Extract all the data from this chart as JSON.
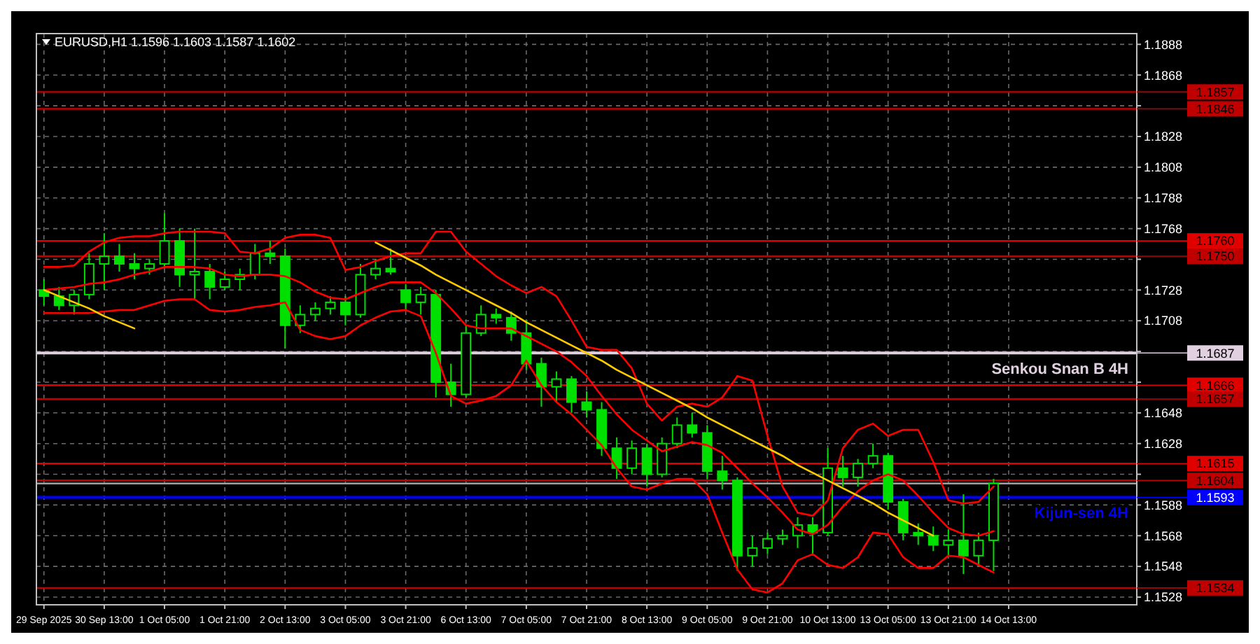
{
  "chart_data": {
    "type": "candlestick",
    "title": "EURUSD,H1  1.1596 1.1603 1.1587 1.1602",
    "color": "#00e000",
    "categories": [
      "29 Sep 2025",
      null,
      null,
      null,
      "30 Sep 13:00",
      null,
      null,
      null,
      "1 Oct 05:00",
      null,
      null,
      null,
      "1 Oct 21:00",
      null,
      null,
      null,
      "2 Oct 13:00",
      null,
      null,
      null,
      "3 Oct 05:00",
      null,
      null,
      null,
      "3 Oct 21:00",
      null,
      null,
      null,
      "6 Oct 13:00",
      null,
      null,
      null,
      "7 Oct 05:00",
      null,
      null,
      null,
      "7 Oct 21:00",
      null,
      null,
      null,
      "8 Oct 13:00",
      null,
      null,
      null,
      "9 Oct 05:00",
      null,
      null,
      null,
      "9 Oct 21:00",
      null,
      null,
      null,
      "10 Oct 13:00",
      null,
      null,
      null,
      "13 Oct 05:00",
      null,
      null,
      null,
      "13 Oct 21:00",
      null,
      null,
      null,
      "14 Oct 13:00",
      null,
      null,
      null,
      null,
      null,
      null,
      null,
      null
    ],
    "ohlc": [
      [
        1.1728,
        1.1735,
        1.1718,
        1.1724
      ],
      [
        1.1724,
        1.173,
        1.1715,
        1.1718
      ],
      [
        1.1718,
        1.1728,
        1.1712,
        1.1725
      ],
      [
        1.1725,
        1.1752,
        1.1722,
        1.1745
      ],
      [
        1.1745,
        1.1765,
        1.1728,
        1.175
      ],
      [
        1.175,
        1.1758,
        1.174,
        1.1745
      ],
      [
        1.1745,
        1.1752,
        1.1735,
        1.1742
      ],
      [
        1.1742,
        1.1748,
        1.1738,
        1.1745
      ],
      [
        1.1745,
        1.1778,
        1.1742,
        1.176
      ],
      [
        1.176,
        1.1768,
        1.173,
        1.1738
      ],
      [
        1.1738,
        1.1768,
        1.1722,
        1.174
      ],
      [
        1.174,
        1.1745,
        1.1722,
        1.173
      ],
      [
        1.173,
        1.174,
        1.1728,
        1.1735
      ],
      [
        1.1735,
        1.1742,
        1.1728,
        1.1738
      ],
      [
        1.1738,
        1.1758,
        1.1735,
        1.1752
      ],
      [
        1.1752,
        1.176,
        1.1745,
        1.175
      ],
      [
        1.175,
        1.1755,
        1.169,
        1.1705
      ],
      [
        1.1705,
        1.1718,
        1.17,
        1.1712
      ],
      [
        1.1712,
        1.172,
        1.1708,
        1.1716
      ],
      [
        1.1716,
        1.1724,
        1.1712,
        1.172
      ],
      [
        1.172,
        1.1724,
        1.1705,
        1.1712
      ],
      [
        1.1712,
        1.1745,
        1.171,
        1.1738
      ],
      [
        1.1738,
        1.1748,
        1.1735,
        1.1742
      ],
      [
        1.1742,
        1.1755,
        1.1738,
        1.174
      ],
      [
        1.1728,
        1.1732,
        1.1715,
        1.172
      ],
      [
        1.172,
        1.173,
        1.1712,
        1.1725
      ],
      [
        1.1725,
        1.1728,
        1.1658,
        1.1668
      ],
      [
        1.1668,
        1.168,
        1.1652,
        1.166
      ],
      [
        1.166,
        1.1705,
        1.1658,
        1.17
      ],
      [
        1.17,
        1.1718,
        1.1698,
        1.1712
      ],
      [
        1.1712,
        1.1716,
        1.1706,
        1.171
      ],
      [
        1.171,
        1.1714,
        1.1695,
        1.17
      ],
      [
        1.17,
        1.1708,
        1.1676,
        1.168
      ],
      [
        1.168,
        1.1684,
        1.1652,
        1.1665
      ],
      [
        1.1665,
        1.1675,
        1.1655,
        1.167
      ],
      [
        1.167,
        1.1672,
        1.1648,
        1.1655
      ],
      [
        1.1655,
        1.1662,
        1.1645,
        1.165
      ],
      [
        1.165,
        1.1655,
        1.162,
        1.1625
      ],
      [
        1.1625,
        1.1632,
        1.1605,
        1.1612
      ],
      [
        1.1612,
        1.163,
        1.1608,
        1.1625
      ],
      [
        1.1625,
        1.1628,
        1.16,
        1.1608
      ],
      [
        1.1608,
        1.1632,
        1.1606,
        1.1628
      ],
      [
        1.1628,
        1.1645,
        1.1625,
        1.164
      ],
      [
        1.164,
        1.1648,
        1.1632,
        1.1635
      ],
      [
        1.1635,
        1.164,
        1.1605,
        1.161
      ],
      [
        1.161,
        1.162,
        1.1598,
        1.1604
      ],
      [
        1.1604,
        1.1606,
        1.1545,
        1.1555
      ],
      [
        1.1555,
        1.1568,
        1.1548,
        1.156
      ],
      [
        1.156,
        1.157,
        1.1556,
        1.1566
      ],
      [
        1.1566,
        1.1572,
        1.1562,
        1.1568
      ],
      [
        1.1568,
        1.158,
        1.156,
        1.1575
      ],
      [
        1.1575,
        1.158,
        1.1555,
        1.157
      ],
      [
        1.157,
        1.1625,
        1.1568,
        1.1612
      ],
      [
        1.1612,
        1.162,
        1.16,
        1.1606
      ],
      [
        1.1606,
        1.1618,
        1.16,
        1.1615
      ],
      [
        1.1615,
        1.1628,
        1.1612,
        1.162
      ],
      [
        1.162,
        1.1622,
        1.1585,
        1.159
      ],
      [
        1.159,
        1.1592,
        1.1565,
        1.157
      ],
      [
        1.157,
        1.1576,
        1.1562,
        1.1568
      ],
      [
        1.1568,
        1.1574,
        1.1558,
        1.1562
      ],
      [
        1.1562,
        1.1572,
        1.1555,
        1.1565
      ],
      [
        1.1565,
        1.1595,
        1.1543,
        1.1555
      ],
      [
        1.1555,
        1.157,
        1.1548,
        1.1565
      ],
      [
        1.1565,
        1.1605,
        1.1545,
        1.1602
      ],
      null,
      null,
      null,
      null,
      null,
      null,
      null,
      null,
      null
    ],
    "series": [
      {
        "type": "line",
        "color": "#ff0000",
        "values": [
          1.1743,
          1.1743,
          1.1744,
          1.1753,
          1.1759,
          1.1762,
          1.1763,
          1.1763,
          1.1765,
          1.1766,
          1.1766,
          1.1766,
          1.1765,
          1.1753,
          1.1752,
          1.1755,
          1.1762,
          1.1764,
          1.1764,
          1.1762,
          1.1741,
          1.1743,
          1.1747,
          1.175,
          1.1752,
          1.1752,
          1.1766,
          1.1766,
          1.1753,
          1.1745,
          1.1737,
          1.1731,
          1.1726,
          1.173,
          1.1724,
          1.1708,
          1.1691,
          1.1689,
          1.1689,
          1.1677,
          1.1654,
          1.1643,
          1.1652,
          1.1654,
          1.1652,
          1.1658,
          1.1672,
          1.1669,
          1.1633,
          1.16,
          1.1583,
          1.1581,
          1.1591,
          1.1625,
          1.1637,
          1.1641,
          1.1633,
          1.1637,
          1.1637,
          1.1616,
          1.1591,
          1.1589,
          1.159,
          1.16,
          null,
          null,
          null,
          null,
          null,
          null,
          null,
          null,
          null
        ]
      },
      {
        "type": "line",
        "color": "#ff0000",
        "values": [
          1.1728,
          1.1729,
          1.173,
          1.1732,
          1.1733,
          1.1735,
          1.1738,
          1.174,
          1.1743,
          1.1743,
          1.1743,
          1.1742,
          1.1738,
          1.1737,
          1.1738,
          1.1738,
          1.1737,
          1.1733,
          1.1727,
          1.1723,
          1.1722,
          1.1726,
          1.173,
          1.1733,
          1.1733,
          1.1733,
          1.1726,
          1.1716,
          1.1705,
          1.1703,
          1.1703,
          1.1703,
          1.1698,
          1.1693,
          1.1688,
          1.1681,
          1.1672,
          1.1659,
          1.1647,
          1.1637,
          1.163,
          1.1623,
          1.1626,
          1.1629,
          1.1627,
          1.1622,
          1.1612,
          1.1602,
          1.1593,
          1.1583,
          1.1572,
          1.1569,
          1.1575,
          1.1587,
          1.1597,
          1.1604,
          1.1608,
          1.1604,
          1.1594,
          1.1583,
          1.1573,
          1.1569,
          1.1568,
          1.1571,
          null,
          null,
          null,
          null,
          null,
          null,
          null,
          null,
          null
        ]
      },
      {
        "type": "line",
        "color": "#ff0000",
        "values": [
          1.1713,
          1.1713,
          1.1713,
          1.1713,
          1.1714,
          1.1715,
          1.1715,
          1.1718,
          1.1721,
          1.1722,
          1.1722,
          1.1715,
          1.1714,
          1.1715,
          1.1717,
          1.1718,
          1.172,
          1.1702,
          1.1698,
          1.1696,
          1.1698,
          1.1705,
          1.171,
          1.1714,
          1.1715,
          1.1711,
          1.1687,
          1.1659,
          1.1654,
          1.1656,
          1.1659,
          1.1666,
          1.1682,
          1.1666,
          1.1655,
          1.1647,
          1.1637,
          1.1627,
          1.1612,
          1.16,
          1.1598,
          1.1602,
          1.1605,
          1.1605,
          1.1595,
          1.157,
          1.1546,
          1.1533,
          1.1531,
          1.1537,
          1.1552,
          1.1556,
          1.1549,
          1.1547,
          1.1554,
          1.157,
          1.1569,
          1.1554,
          1.1547,
          1.1547,
          1.1555,
          1.1554,
          1.1549,
          1.1544,
          null,
          null,
          null,
          null,
          null,
          null,
          null,
          null,
          null
        ]
      },
      {
        "type": "line",
        "color": "#ffcc00",
        "values": [
          1.1728,
          1.1724,
          1.172,
          1.1716,
          1.1711,
          1.1707,
          1.1703,
          null,
          null,
          null,
          null,
          null,
          null,
          null,
          null,
          null,
          null,
          null,
          null,
          null,
          null,
          null,
          null,
          null,
          null,
          null,
          null,
          null,
          null,
          null,
          null,
          null,
          null,
          null,
          null,
          null,
          null,
          null,
          null,
          null,
          null,
          null,
          null,
          null,
          null,
          null,
          null,
          null,
          null,
          null,
          null,
          null,
          null,
          null,
          null,
          null,
          null,
          null,
          null,
          null,
          null,
          null,
          null,
          null,
          null,
          null,
          null,
          null,
          null,
          null,
          null,
          null,
          null
        ]
      },
      {
        "type": "line",
        "color": "#ffcc00",
        "values": [
          null,
          null,
          null,
          null,
          null,
          null,
          null,
          null,
          null,
          null,
          null,
          null,
          null,
          null,
          null,
          null,
          null,
          null,
          null,
          null,
          null,
          null,
          1.1759,
          1.1754,
          1.1749,
          1.1744,
          1.1738,
          1.1733,
          1.1728,
          1.1723,
          1.1718,
          1.1713,
          1.1707,
          1.1702,
          1.1697,
          1.1692,
          1.1687,
          1.1682,
          1.1676,
          1.1671,
          1.1666,
          1.1661,
          1.1656,
          1.1651,
          1.1645,
          1.164,
          1.1635,
          1.163,
          1.1625,
          1.162,
          1.1614,
          1.1609,
          1.1604,
          1.1599,
          1.1594,
          1.1589,
          1.1583,
          1.1578,
          1.1573,
          1.1568,
          null,
          null,
          null,
          null,
          null,
          null,
          null,
          null,
          null,
          null,
          null,
          null,
          null
        ]
      }
    ],
    "ref_lines": [
      {
        "axis": "y",
        "value": 1.1857,
        "color": "#c00000",
        "label": "1.1857"
      },
      {
        "axis": "y",
        "value": 1.1846,
        "color": "#c00000",
        "label": "1.1846"
      },
      {
        "axis": "y",
        "value": 1.176,
        "color": "#e00000",
        "label": "1.1760"
      },
      {
        "axis": "y",
        "value": 1.175,
        "color": "#c00000",
        "label": "1.1750"
      },
      {
        "axis": "y",
        "value": 1.1687,
        "color": "#e0d0e0",
        "label": "1.1687"
      },
      {
        "axis": "y",
        "value": 1.1666,
        "color": "#e00000",
        "label": "1.1666"
      },
      {
        "axis": "y",
        "value": 1.1657,
        "color": "#c00000",
        "label": "1.1657"
      },
      {
        "axis": "y",
        "value": 1.1615,
        "color": "#e00000",
        "label": "1.1615"
      },
      {
        "axis": "y",
        "value": 1.1604,
        "color": "#c00000",
        "label": "1.1604"
      },
      {
        "axis": "y",
        "value": 1.1602,
        "color": "#a0a0a0"
      },
      {
        "axis": "y",
        "value": 1.1593,
        "color": "#0000ff",
        "label": "1.1593"
      },
      {
        "axis": "y",
        "value": 1.1534,
        "color": "#c00000",
        "label": "1.1534"
      }
    ],
    "annotations": [
      {
        "text": "Senkou Snan B 4H",
        "y": 1.1687
      },
      {
        "text": "Kijun-sen 4H",
        "y": 1.1593
      }
    ],
    "ylim": [
      1.1523,
      1.1895
    ],
    "yticks": [
      1.1888,
      1.1868,
      {
        "value": 1.1848,
        "label": null
      },
      1.1828,
      1.1808,
      1.1788,
      1.1768,
      {
        "value": 1.1748,
        "label": null
      },
      1.1728,
      1.1708,
      {
        "value": 1.1688,
        "label": null
      },
      {
        "value": 1.1668,
        "label": null
      },
      1.1648,
      1.1628,
      {
        "value": 1.1608,
        "label": null
      },
      1.1588,
      1.1568,
      1.1548,
      1.1528
    ],
    "grid": true
  }
}
